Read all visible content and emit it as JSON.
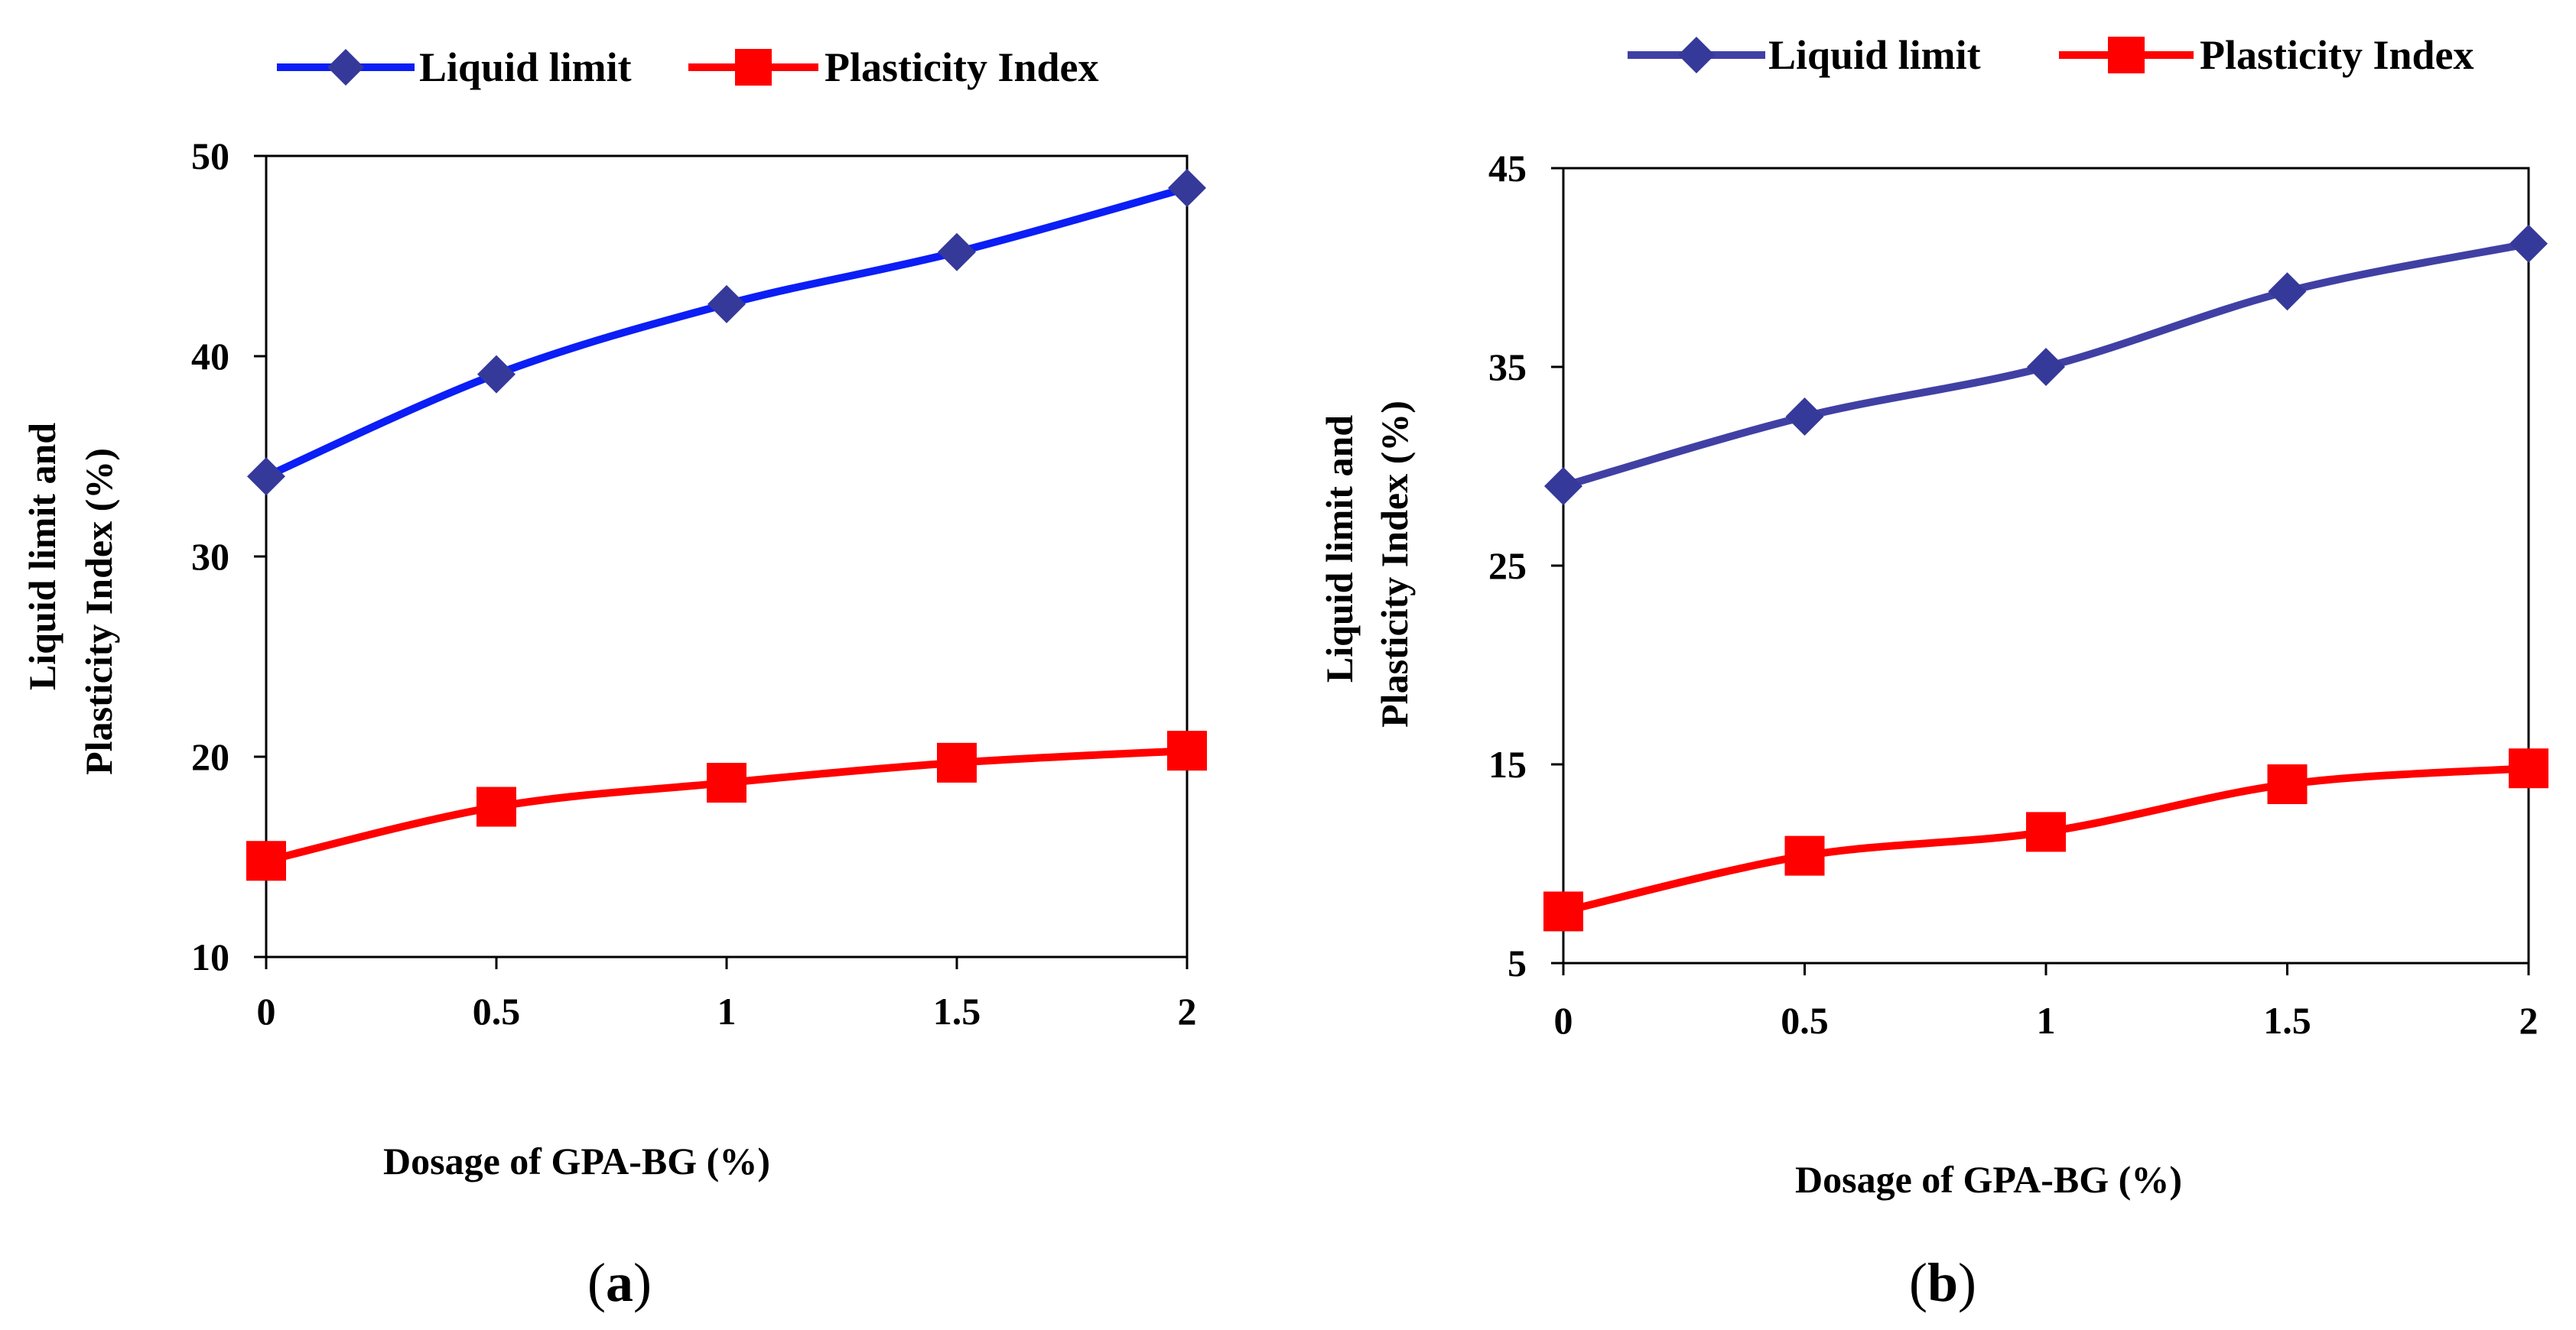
{
  "chart_data": [
    {
      "type": "line",
      "panel_label": "a",
      "x": [
        0,
        0.5,
        1,
        1.5,
        2
      ],
      "x_tick_labels": [
        "0",
        "0.5",
        "1",
        "1.5",
        "2"
      ],
      "xlim": [
        0,
        2
      ],
      "ylim": [
        10,
        50
      ],
      "y_ticks": [
        10,
        20,
        30,
        40,
        50
      ],
      "y_tick_labels": [
        "10",
        "20",
        "30",
        "40",
        "50"
      ],
      "xlabel": "Dosage of GPA-BG (%)",
      "ylabel_lines": [
        "Liquid limit and",
        "Plasticity Index (%)"
      ],
      "legend_position": "top",
      "grid": false,
      "series": [
        {
          "name": "Liquid limit",
          "marker": "diamond",
          "color": "#0b1ef5",
          "marker_color": "#35399a",
          "values": [
            34.0,
            39.1,
            42.6,
            45.2,
            48.4
          ]
        },
        {
          "name": "Plasticity Index",
          "marker": "square",
          "color": "#ff0000",
          "marker_color": "#ff0000",
          "values": [
            14.8,
            17.5,
            18.7,
            19.7,
            20.3
          ]
        }
      ]
    },
    {
      "type": "line",
      "panel_label": "b",
      "x": [
        0,
        0.5,
        1,
        1.5,
        2
      ],
      "x_tick_labels": [
        "0",
        "0.5",
        "1",
        "1.5",
        "2"
      ],
      "xlim": [
        0,
        2
      ],
      "ylim": [
        5,
        45
      ],
      "y_ticks": [
        5,
        15,
        25,
        35,
        45
      ],
      "y_tick_labels": [
        "5",
        "15",
        "25",
        "35",
        "45"
      ],
      "xlabel": "Dosage of GPA-BG (%)",
      "ylabel_lines": [
        "Liquid limit  and",
        "Plasticity Index (%)"
      ],
      "legend_position": "top",
      "grid": false,
      "series": [
        {
          "name": "Liquid limit",
          "marker": "diamond",
          "color": "#4040a4",
          "marker_color": "#35399a",
          "values": [
            29.0,
            32.5,
            35.0,
            38.8,
            41.2
          ]
        },
        {
          "name": "Plasticity Index",
          "marker": "square",
          "color": "#ff0000",
          "marker_color": "#ff0000",
          "values": [
            7.6,
            10.4,
            11.6,
            14.0,
            14.8
          ]
        }
      ]
    }
  ]
}
